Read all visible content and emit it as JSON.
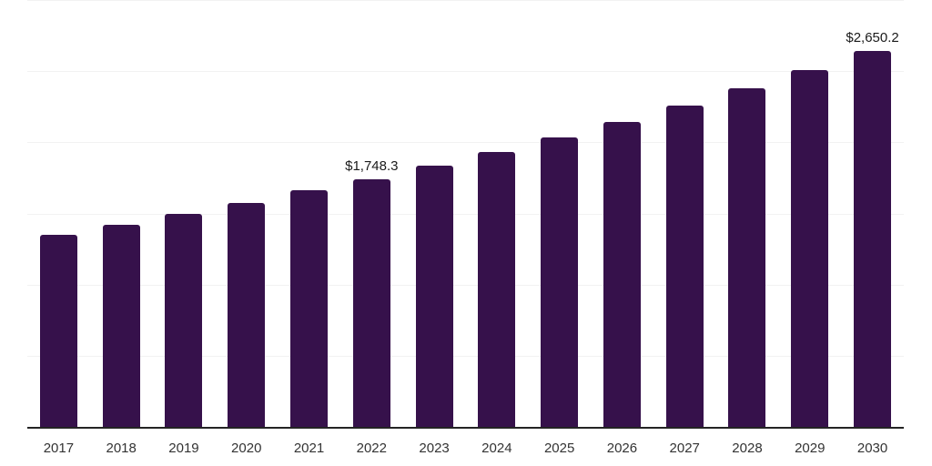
{
  "chart_data": {
    "type": "bar",
    "title": "",
    "xlabel": "",
    "ylabel": "",
    "categories": [
      "2017",
      "2018",
      "2019",
      "2020",
      "2021",
      "2022",
      "2023",
      "2024",
      "2025",
      "2026",
      "2027",
      "2028",
      "2029",
      "2030"
    ],
    "values": [
      1357,
      1428,
      1505,
      1581,
      1671,
      1748.3,
      1844,
      1940,
      2040,
      2148,
      2263,
      2384,
      2516,
      2650.2
    ],
    "data_labels": [
      {
        "category": "2022",
        "label": "$1,748.3"
      },
      {
        "category": "2030",
        "label": "$2,650.2"
      }
    ],
    "ylim": [
      0,
      3000
    ],
    "gridline_interval": 500,
    "grid": "horizontal",
    "legend_position": "none",
    "y_axis_tick_labels_visible": false,
    "colors": {
      "bar": "#36114B",
      "axis_line": "#242424",
      "gridline": "#F2F2F2",
      "data_label_text": "#1A1A1A",
      "tick_label_text": "#333333",
      "background": "#FFFFFF"
    }
  }
}
